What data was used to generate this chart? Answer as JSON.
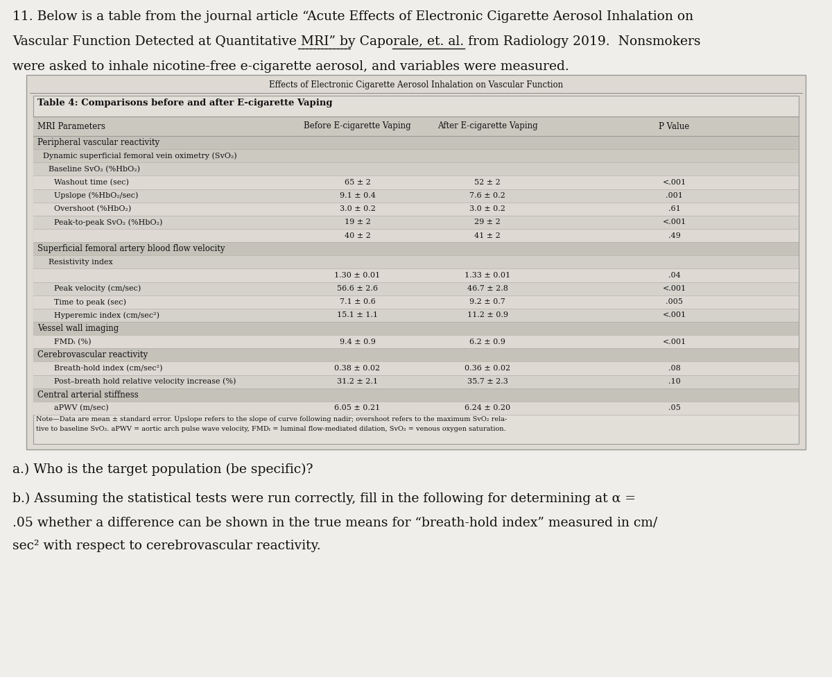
{
  "bg_color": "#f0eeea",
  "intro_lines": [
    "11. Below is a table from the journal article “Acute Effects of Electronic Cigarette Aerosol Inhalation on",
    "Vascular Function Detected at Quantitative MRI” by Caporale, et. al. from Radiology 2019.  Nonsmokers",
    "were asked to inhale nicotine-free e-cigarette aerosol, and variables were measured."
  ],
  "supertitle": "Effects of Electronic Cigarette Aerosol Inhalation on Vascular Function",
  "table_title": "Table 4: Comparisons before and after E-cigarette Vaping",
  "col_headers": [
    "MRI Parameters",
    "Before E-cigarette Vaping",
    "After E-cigarette Vaping",
    "P Value"
  ],
  "table_rows": [
    {
      "type": "section",
      "label": "Peripheral vascular reactivity",
      "before": "",
      "after": "",
      "p": ""
    },
    {
      "type": "subsection",
      "label": "Dynamic superficial femoral vein oximetry (SvO₂)",
      "before": "",
      "after": "",
      "p": ""
    },
    {
      "type": "sub2",
      "label": "Baseline SvO₂ (%HbO₂)",
      "before": "",
      "after": "",
      "p": ""
    },
    {
      "type": "data",
      "label": "Washout time (sec)",
      "before": "65 ± 2",
      "after": "52 ± 2",
      "p": "<.001"
    },
    {
      "type": "data",
      "label": "Upslope (%HbO₂/sec)",
      "before": "9.1 ± 0.4",
      "after": "7.6 ± 0.2",
      "p": ".001"
    },
    {
      "type": "data",
      "label": "Overshoot (%HbO₂)",
      "before": "3.0 ± 0.2",
      "after": "3.0 ± 0.2",
      "p": ".61"
    },
    {
      "type": "data",
      "label": "Peak-to-peak SvO₂ (%HbO₂)",
      "before": "19 ± 2",
      "after": "29 ± 2",
      "p": "<.001"
    },
    {
      "type": "data",
      "label": "",
      "before": "40 ± 2",
      "after": "41 ± 2",
      "p": ".49"
    },
    {
      "type": "section",
      "label": "Superficial femoral artery blood flow velocity",
      "before": "",
      "after": "",
      "p": ""
    },
    {
      "type": "sub2",
      "label": "Resistivity index",
      "before": "",
      "after": "",
      "p": ""
    },
    {
      "type": "data",
      "label": "",
      "before": "1.30 ± 0.01",
      "after": "1.33 ± 0.01",
      "p": ".04"
    },
    {
      "type": "data",
      "label": "Peak velocity (cm/sec)",
      "before": "56.6 ± 2.6",
      "after": "46.7 ± 2.8",
      "p": "<.001"
    },
    {
      "type": "data",
      "label": "Time to peak (sec)",
      "before": "7.1 ± 0.6",
      "after": "9.2 ± 0.7",
      "p": ".005"
    },
    {
      "type": "data",
      "label": "Hyperemic index (cm/sec²)",
      "before": "15.1 ± 1.1",
      "after": "11.2 ± 0.9",
      "p": "<.001"
    },
    {
      "type": "section",
      "label": "Vessel wall imaging",
      "before": "",
      "after": "",
      "p": ""
    },
    {
      "type": "data",
      "label": "FMDₗ (%)",
      "before": "9.4 ± 0.9",
      "after": "6.2 ± 0.9",
      "p": "<.001"
    },
    {
      "type": "section",
      "label": "Cerebrovascular reactivity",
      "before": "",
      "after": "",
      "p": ""
    },
    {
      "type": "data",
      "label": "Breath-hold index (cm/sec²)",
      "before": "0.38 ± 0.02",
      "after": "0.36 ± 0.02",
      "p": ".08"
    },
    {
      "type": "data",
      "label": "Post–breath hold relative velocity increase (%)",
      "before": "31.2 ± 2.1",
      "after": "35.7 ± 2.3",
      "p": ".10"
    },
    {
      "type": "section",
      "label": "Central arterial stiffness",
      "before": "",
      "after": "",
      "p": ""
    },
    {
      "type": "data",
      "label": "aPWV (m/sec)",
      "before": "6.05 ± 0.21",
      "after": "6.24 ± 0.20",
      "p": ".05"
    }
  ],
  "note_line1": "Note—Data are mean ± standard error. Upslope refers to the slope of curve following nadir; overshoot refers to the maximum SvO₂ rela-",
  "note_line2": "tive to baseline SvO₂. aPWV = aortic arch pulse wave velocity, FMDₗ = luminal flow-mediated dilation, SvO₂ = venous oxygen saturation.",
  "question_a": "a.) Who is the target population (be specific)?",
  "question_b_lines": [
    "b.) Assuming the statistical tests were run correctly, fill in the following for determining at α =",
    ".05 whether a difference can be shown in the true means for “breath-hold index” measured in cm/",
    "sec² with respect to cerebrovascular reactivity."
  ],
  "color_section": "#c5c2ba",
  "color_subsection": "#ccc9c1",
  "color_sub2": "#d2cfc8",
  "color_data_light": "#dedad3",
  "color_data_dark": "#d5d2cb",
  "color_header_row": "#cbc8c0",
  "color_outer_box": "#dedad3",
  "color_inner_box": "#e2dfd8",
  "color_border": "#999994",
  "color_line": "#aaa8a2"
}
